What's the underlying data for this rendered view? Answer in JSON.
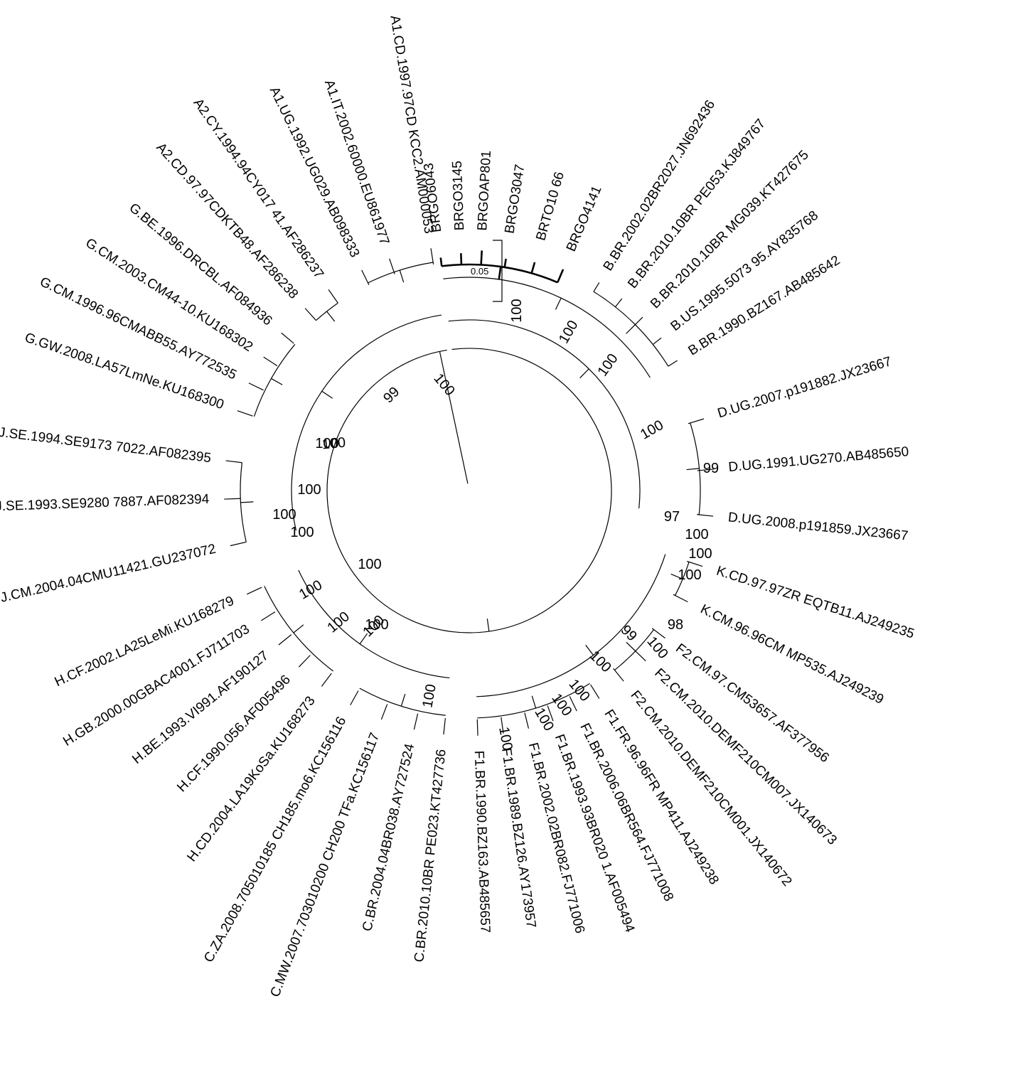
{
  "colors": {
    "branch": "#000000",
    "highlight": "#e8141c"
  },
  "scale_bar": {
    "label": "0.05"
  },
  "tips": [
    {
      "name": "BRGO6043",
      "highlight": true
    },
    {
      "name": "BRGO3145",
      "highlight": true
    },
    {
      "name": "BRGOAP801",
      "highlight": true
    },
    {
      "name": "BRGO3047",
      "highlight": true
    },
    {
      "name": "BRTO10 66",
      "highlight": true
    },
    {
      "name": "BRGO4141",
      "highlight": true
    },
    {
      "name": "B.BR.2002.02BR2027.JN692436"
    },
    {
      "name": "B.BR.2010.10BR PE053.KJ849767"
    },
    {
      "name": "B.BR.2010.10BR MG039.KT427675"
    },
    {
      "name": "B.US.1995.5073 95.AY835768"
    },
    {
      "name": "B.BR.1990.BZ167.AB485642"
    },
    {
      "name": "D.UG.2007.p191882.JX23667"
    },
    {
      "name": "D.UG.1991.UG270.AB485650"
    },
    {
      "name": "D.UG.2008.p191859.JX23667"
    },
    {
      "name": "K.CD.97.97ZR EQTB11.AJ249235"
    },
    {
      "name": "K.CM.96.96CM MP535.AJ249239"
    },
    {
      "name": "F2.CM.97.CM53657.AF377956"
    },
    {
      "name": "F2.CM.2010.DEMF210CM007.JX140673"
    },
    {
      "name": "F2.CM.2010.DEMF210CM001.JX140672"
    },
    {
      "name": "F1.FR.96.96FR MP411.AJ249238"
    },
    {
      "name": "F1.BR.2006.06BR564.FJ771008"
    },
    {
      "name": "F1.BR.1993.93BR020 1.AF005494"
    },
    {
      "name": "F1.BR.2002.02BR082.FJ771006"
    },
    {
      "name": "F1.BR.1989.BZ126.AY173957"
    },
    {
      "name": "F1.BR.1990.BZ163.AB485657"
    },
    {
      "name": "C.BR.2010.10BR PE023.KT427736"
    },
    {
      "name": "C.BR.2004.04BR038.AY727524"
    },
    {
      "name": "C.MW.2007.703010200 CH200 TFa.KC156117"
    },
    {
      "name": "C.ZA.2008.705010185 CH185.mo6.KC156116"
    },
    {
      "name": "H.CD.2004.LA19KoSa.KU168273"
    },
    {
      "name": "H.CF.1990.056.AF005496"
    },
    {
      "name": "H.BE.1993.VI991.AF190127"
    },
    {
      "name": "H.GB.2000.00GBAC4001.FJ711703"
    },
    {
      "name": "H.CF.2002.LA25LeMi.KU168279"
    },
    {
      "name": "J.CM.2004.04CMU11421.GU237072"
    },
    {
      "name": "J.SE.1993.SE9280 7887.AF082394"
    },
    {
      "name": "J.SE.1994.SE9173 7022.AF082395"
    },
    {
      "name": "G.GW.2008.LA57LmNe.KU168300"
    },
    {
      "name": "G.CM.1996.96CMABB55.AY772535"
    },
    {
      "name": "G.CM.2003.CM44-10.KU168302"
    },
    {
      "name": "G.BE.1996.DRCBL.AF084936"
    },
    {
      "name": "A2.CD.97.97CDKTB48.AF286238"
    },
    {
      "name": "A2.CY.1994.94CY017 41.AF286237"
    },
    {
      "name": "A1.UG.1992.UG029.AB098333"
    },
    {
      "name": "A1.IT.2002.60000.EU861977"
    },
    {
      "name": "A1.CD.1997.97CD KCC2.AM000053"
    }
  ],
  "bootstrap_values": [
    "100",
    "100",
    "100",
    "100",
    "99",
    "97",
    "100",
    "100",
    "100",
    "98",
    "99",
    "100",
    "100",
    "100",
    "100",
    "100",
    "100",
    "100",
    "100",
    "100",
    "100",
    "100",
    "100",
    "100",
    "100",
    "100",
    "99",
    "100",
    "100",
    "100"
  ]
}
